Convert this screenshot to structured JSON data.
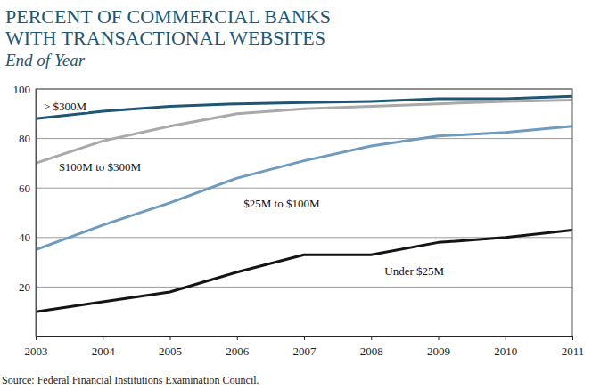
{
  "chart_data": {
    "type": "line",
    "title": "PERCENT OF COMMERCIAL BANKS WITH TRANSACTIONAL WEBSITES",
    "subtitle": "End of Year",
    "source": "Source: Federal Financial Institutions Examination Council.",
    "x": [
      2003,
      2004,
      2005,
      2006,
      2007,
      2008,
      2009,
      2010,
      2011
    ],
    "xlim": [
      2003,
      2011
    ],
    "xticks": [
      2003,
      2004,
      2005,
      2006,
      2007,
      2008,
      2009,
      2010,
      2011
    ],
    "ylim": [
      0,
      100
    ],
    "yticks": [
      20,
      40,
      60,
      80,
      100
    ],
    "grid": true,
    "series": [
      {
        "name": "> $300M",
        "color": "#1f5673",
        "values": [
          88,
          91,
          93,
          94,
          94.5,
          95,
          96,
          96,
          97
        ]
      },
      {
        "name": "$100M to $300M",
        "color": "#a9a9a9",
        "values": [
          70,
          79,
          85,
          90,
          92,
          93,
          94,
          95,
          95.5
        ]
      },
      {
        "name": "$25M to $100M",
        "color": "#6f9bbf",
        "values": [
          35,
          45,
          54,
          64,
          71,
          77,
          81,
          82.5,
          85
        ]
      },
      {
        "name": "Under $25M",
        "color": "#141414",
        "values": [
          10,
          14,
          18,
          26,
          33,
          33,
          38,
          40,
          43
        ]
      }
    ]
  }
}
